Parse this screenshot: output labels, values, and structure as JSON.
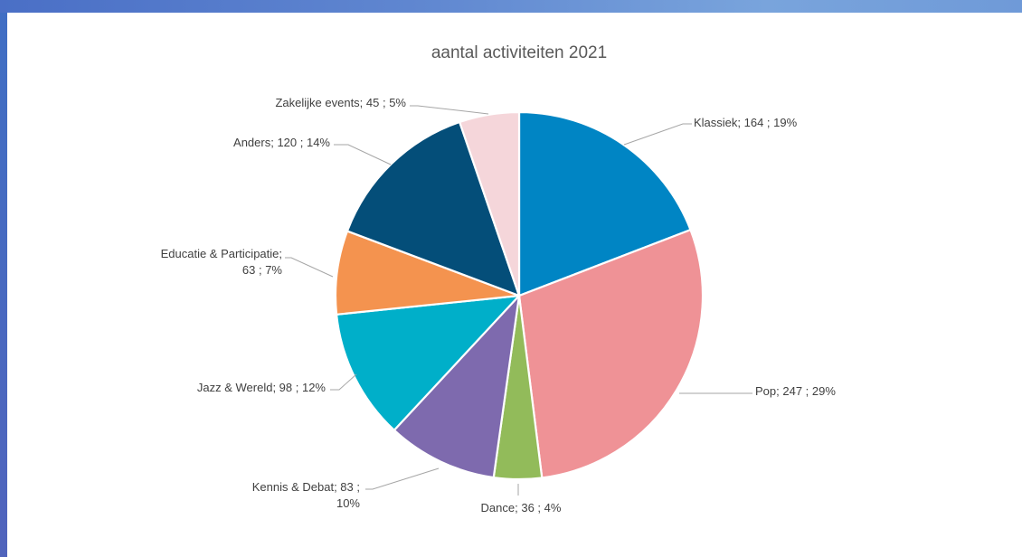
{
  "chart_data": {
    "type": "pie",
    "title": "aantal activiteiten 2021",
    "start_angle_deg": 0,
    "direction": "clockwise",
    "slices": [
      {
        "name": "Klassiek",
        "value": 164,
        "percent": "19%",
        "color": "#0085C4",
        "label_lines": [
          "Klassiek;  164 ; 19%"
        ]
      },
      {
        "name": "Pop",
        "value": 247,
        "percent": "29%",
        "color": "#EF9296",
        "label_lines": [
          "Pop;  247 ; 29%"
        ]
      },
      {
        "name": "Dance",
        "value": 36,
        "percent": "4%",
        "color": "#92BB5A",
        "label_lines": [
          "Dance;  36 ; 4%"
        ]
      },
      {
        "name": "Kennis & Debat",
        "value": 83,
        "percent": "10%",
        "color": "#7E6AAE",
        "label_lines": [
          "Kennis & Debat;  83 ;",
          "10%"
        ]
      },
      {
        "name": "Jazz & Wereld",
        "value": 98,
        "percent": "12%",
        "color": "#00AFC9",
        "label_lines": [
          "Jazz & Wereld;  98 ; 12%"
        ]
      },
      {
        "name": "Educatie & Participatie",
        "value": 63,
        "percent": "7%",
        "color": "#F4934F",
        "label_lines": [
          "Educatie & Participatie;",
          "63 ; 7%"
        ]
      },
      {
        "name": "Anders",
        "value": 120,
        "percent": "14%",
        "color": "#044E79",
        "label_lines": [
          "Anders;  120 ; 14%"
        ]
      },
      {
        "name": "Zakelijke events",
        "value": 45,
        "percent": "5%",
        "color": "#F5D6DA",
        "label_lines": [
          "Zakelijke events;  45 ; 5%"
        ]
      }
    ]
  }
}
